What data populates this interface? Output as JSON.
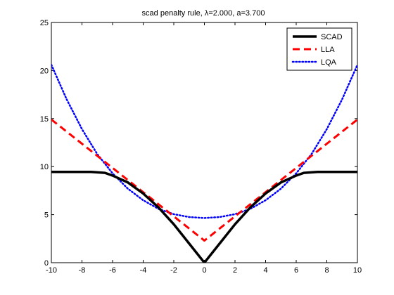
{
  "chart_data": {
    "type": "line",
    "title": "scad penalty rule, λ=2.000, a=3.700",
    "xlabel": "",
    "ylabel": "",
    "xlim": [
      -10,
      10
    ],
    "ylim": [
      0,
      25
    ],
    "xticks": [
      -10,
      -8,
      -6,
      -4,
      -2,
      0,
      2,
      4,
      6,
      8,
      10
    ],
    "yticks": [
      0,
      5,
      10,
      15,
      20,
      25
    ],
    "grid": false,
    "legend_position": "top-right",
    "series": [
      {
        "name": "SCAD",
        "color": "#000000",
        "style": "solid",
        "x": [
          -10,
          -8,
          -7.4,
          -6.5,
          -6,
          -5,
          -4,
          -3,
          -2,
          -1,
          0,
          1,
          2,
          3,
          4,
          5,
          6,
          6.5,
          7.4,
          8,
          10
        ],
        "y": [
          9.45,
          9.45,
          9.45,
          9.35,
          9.07,
          8.35,
          7.2,
          5.75,
          4.0,
          2.0,
          0.0,
          2.0,
          4.0,
          5.75,
          7.2,
          8.35,
          9.07,
          9.35,
          9.45,
          9.45,
          9.45
        ]
      },
      {
        "name": "LLA",
        "color": "#ff0000",
        "style": "dashed",
        "x": [
          -10,
          -5,
          0,
          5,
          10
        ],
        "y": [
          14.9,
          8.6,
          2.3,
          8.6,
          14.9
        ]
      },
      {
        "name": "LQA",
        "color": "#0000ff",
        "style": "dotted",
        "x": [
          -10,
          -9,
          -8,
          -7,
          -6,
          -5,
          -4,
          -3,
          -2,
          -1,
          0,
          1,
          2,
          3,
          4,
          5,
          6,
          7,
          8,
          9,
          10
        ],
        "y": [
          20.6,
          17.0,
          13.9,
          11.3,
          9.3,
          7.7,
          6.5,
          5.6,
          5.05,
          4.75,
          4.65,
          4.75,
          5.05,
          5.6,
          6.5,
          7.7,
          9.3,
          11.3,
          13.9,
          17.0,
          20.6
        ]
      }
    ]
  }
}
